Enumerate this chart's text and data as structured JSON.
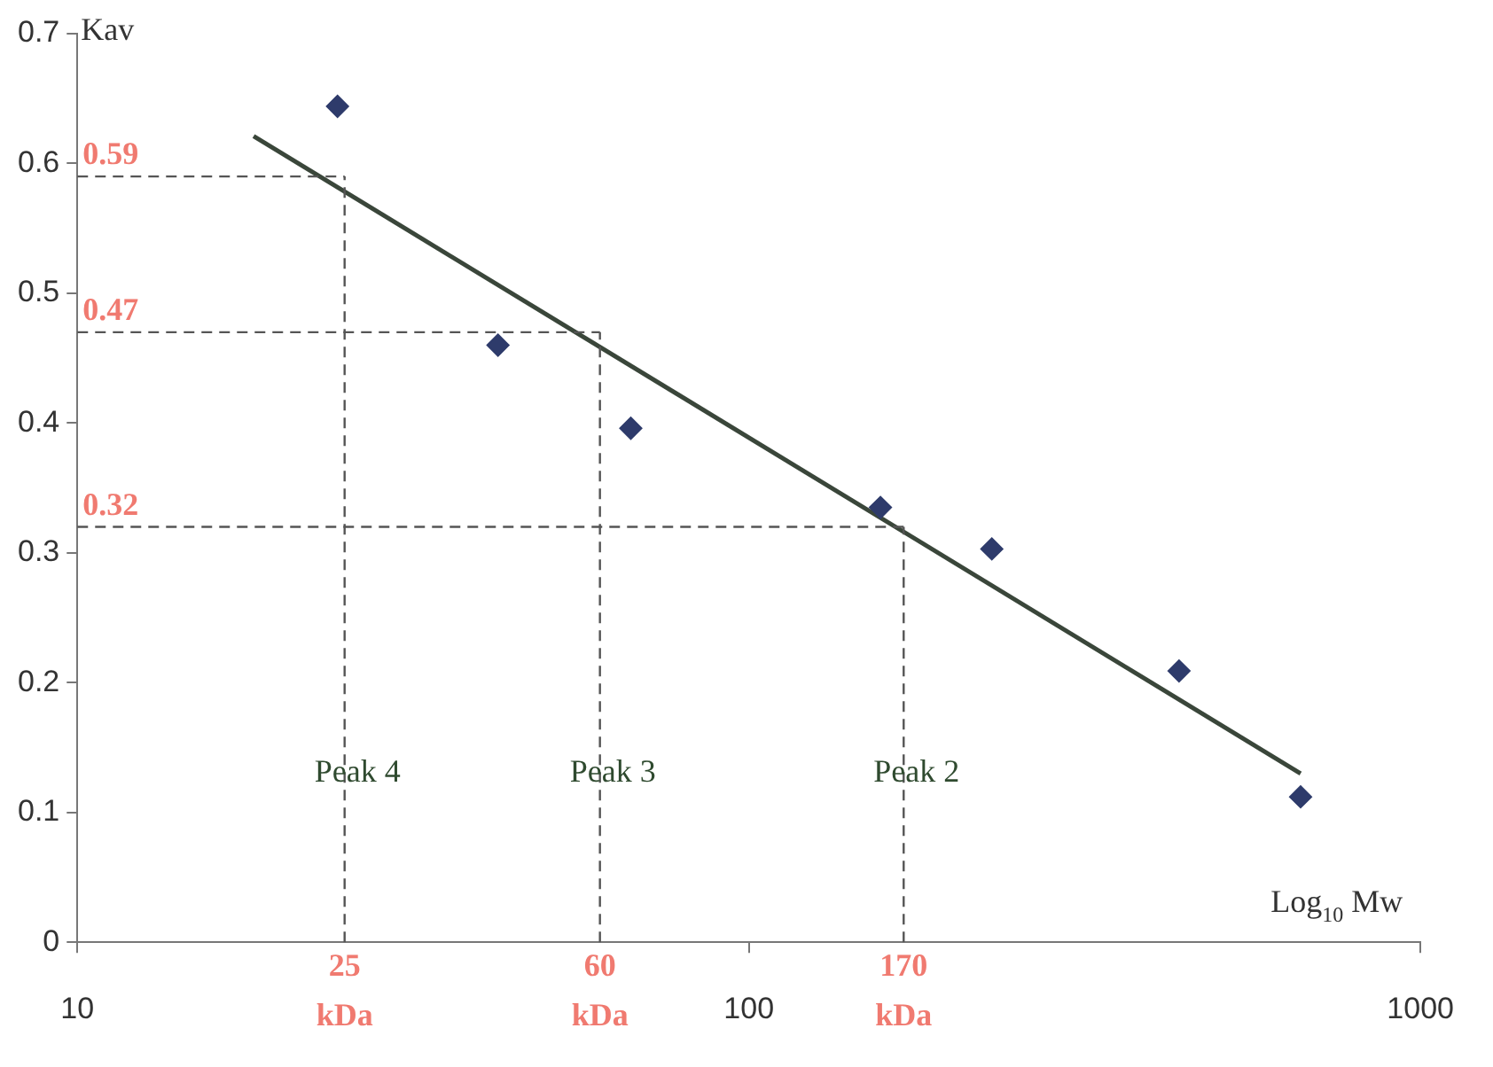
{
  "chart_data": {
    "type": "scatter",
    "xlabel": "Log$_{10}$ Mw",
    "ylabel": "Kav",
    "log": "x",
    "xlim": [
      10,
      1000
    ],
    "xticks": [
      10,
      100,
      1000
    ],
    "ylim": [
      0,
      0.7
    ],
    "yticks": [
      0,
      0.1,
      0.2,
      0.3,
      0.4,
      0.5,
      0.6,
      0.7
    ],
    "grid": false,
    "legend": false,
    "marker": "diamond",
    "series": [
      {
        "color": "#2e3b6b",
        "x": [
          24.4,
          42.3,
          66.7,
          157,
          230,
          437,
          663
        ],
        "values": [
          0.644,
          0.46,
          0.396,
          0.335,
          0.303,
          0.209,
          0.112
        ]
      },
      {
        "type": "line",
        "marker": "none",
        "color": "#3a463a",
        "x": [
          18.3,
          663
        ],
        "values": [
          0.621,
          0.13
        ]
      }
    ],
    "ref_lines": [
      {
        "axis": "y",
        "value": 0.59,
        "label": "0.59",
        "color": "#555555",
        "line_style": "dashed"
      },
      {
        "axis": "y",
        "value": 0.47,
        "label": "0.47",
        "color": "#555555",
        "line_style": "dashed"
      },
      {
        "axis": "y",
        "value": 0.32,
        "label": "0.32",
        "color": "#555555",
        "line_style": "dashed"
      },
      {
        "axis": "x",
        "value": 25,
        "label": "25 kDa",
        "color": "#555555",
        "line_style": "dashed"
      },
      {
        "axis": "x",
        "value": 60,
        "label": "60 kDa",
        "color": "#555555",
        "line_style": "dashed"
      },
      {
        "axis": "x",
        "value": 170,
        "label": "170 kDa",
        "color": "#555555",
        "line_style": "dashed"
      }
    ],
    "annotations": [
      {
        "text": "Peak 4",
        "x": 25,
        "y": 0.13
      },
      {
        "text": "Peak 3",
        "x": 60,
        "y": 0.13
      },
      {
        "text": "Peak 2",
        "x": 170,
        "y": 0.13
      }
    ]
  }
}
